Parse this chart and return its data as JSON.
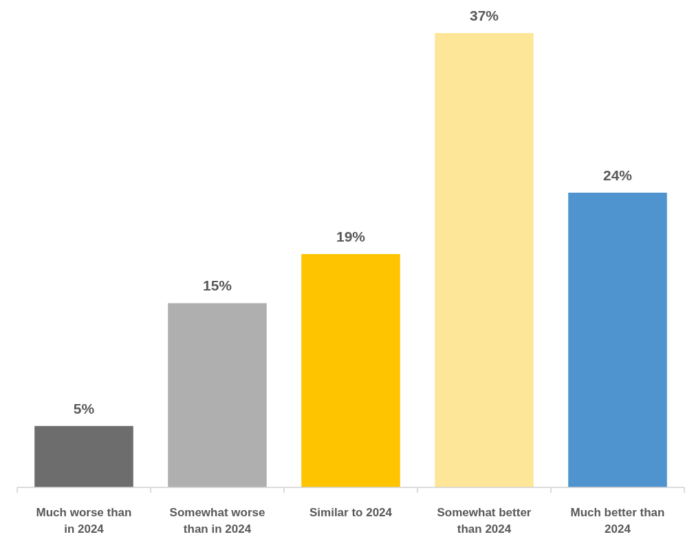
{
  "chart_data": {
    "type": "bar",
    "categories": [
      "Much worse than in 2024",
      "Somewhat worse than in 2024",
      "Similar to 2024",
      "Somewhat better than 2024",
      "Much better than 2024"
    ],
    "values": [
      5,
      15,
      19,
      37,
      24
    ],
    "colors": [
      "#6d6d6d",
      "#afafaf",
      "#fec400",
      "#fee699",
      "#4f93cf"
    ],
    "value_labels": [
      "5%",
      "15%",
      "19%",
      "37%",
      "24%"
    ]
  }
}
